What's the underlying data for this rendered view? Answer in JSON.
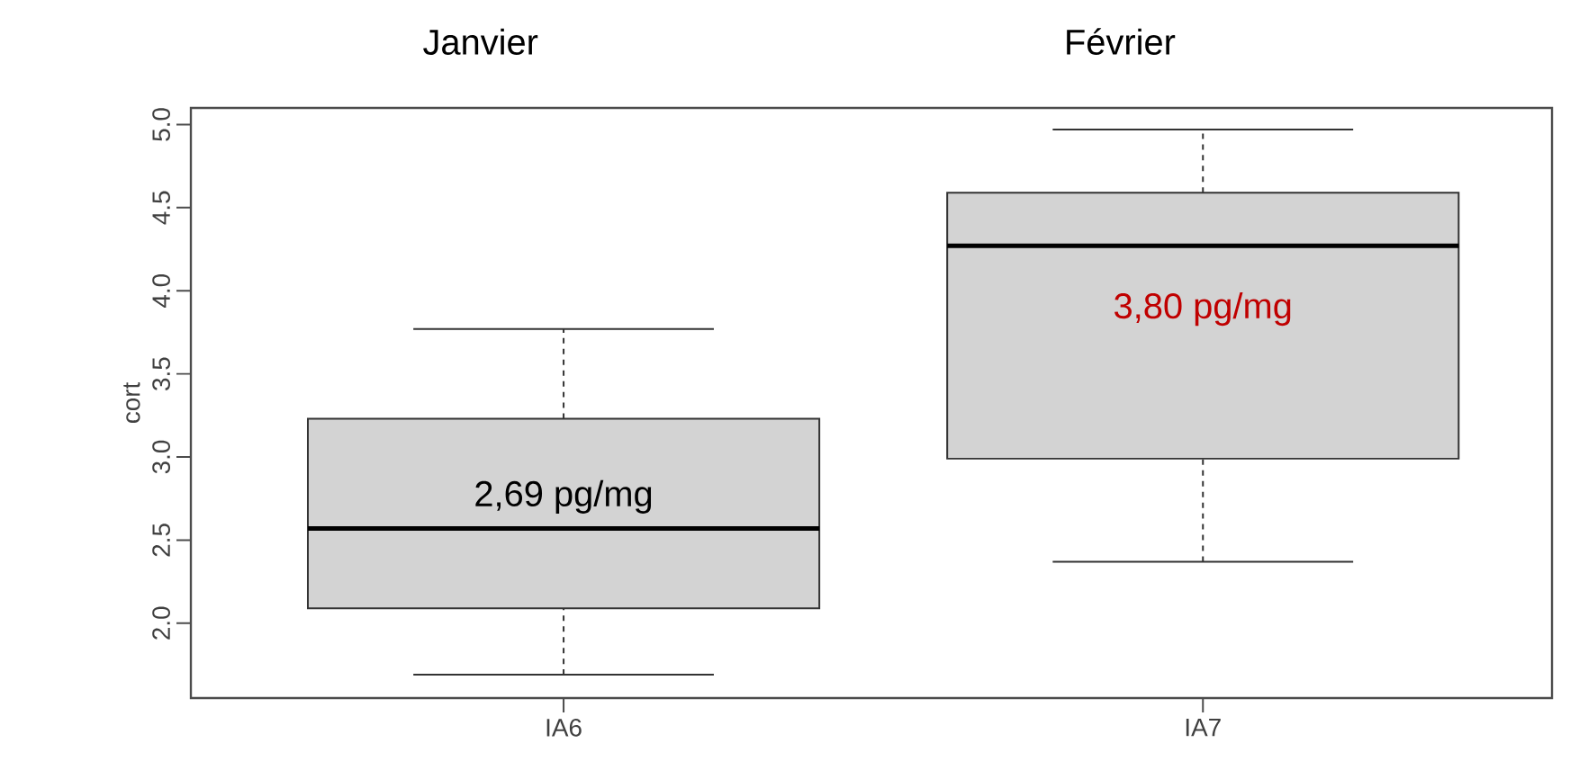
{
  "chart_data": {
    "type": "box",
    "ylabel": "cort",
    "categories": [
      "IA6",
      "IA7"
    ],
    "boxes": [
      {
        "low": 1.69,
        "q1": 2.09,
        "median": 2.57,
        "q3": 3.23,
        "high": 3.77
      },
      {
        "low": 2.37,
        "q1": 2.99,
        "median": 4.27,
        "q3": 4.59,
        "high": 4.97
      }
    ],
    "color": "#d3d3d3",
    "ylim": [
      1.55,
      5.1
    ],
    "yticks": [
      {
        "value": 2,
        "label": "2.0"
      },
      2.5,
      {
        "value": 3,
        "label": "3.0"
      },
      3.5,
      {
        "value": 4,
        "label": "4.0"
      },
      4.5,
      {
        "value": 5,
        "label": "5.0"
      }
    ],
    "annotations": [
      "Janvier",
      "Février",
      "2,69 pg/mg",
      "3,80 pg/mg"
    ]
  }
}
